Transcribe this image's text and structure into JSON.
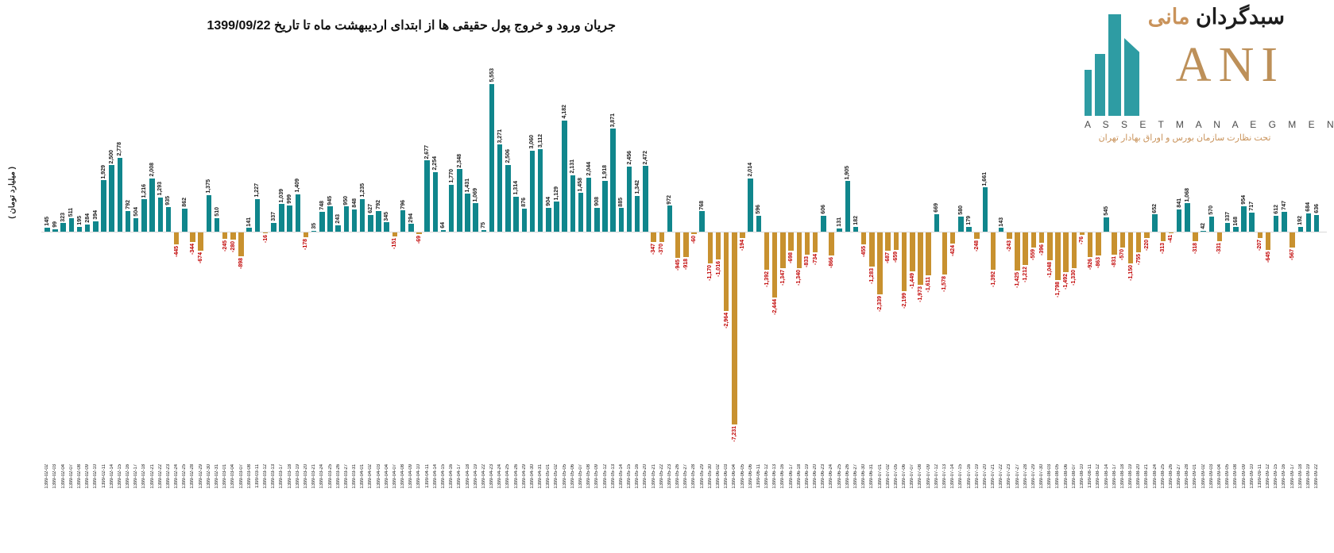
{
  "title": "جریان ورود و خروج پول حقیقی ها از ابتدای اردیبهشت ماه تا تاریخ 1399/09/22",
  "y_axis_label": "( میلیارد تومان )",
  "logo": {
    "brand_fa_dark": "سبدگردان",
    "brand_fa_gold": "مانی",
    "brand_en": "ANI",
    "subtitle_en": "A S S E T M A N A E G M E N T",
    "tagline_fa": "تحت نظارت سازمان بورس و اوراق بهادار تهران",
    "teal": "#2e9ca3",
    "gold": "#bd9059"
  },
  "chart_data": {
    "type": "bar",
    "title": "جریان ورود و خروج پول حقیقی ها از ابتدای اردیبهشت ماه تا تاریخ 1399/09/22",
    "xlabel": "",
    "ylabel": "( میلیارد تومان )",
    "unit": "میلیارد تومان",
    "legend": false,
    "grid": false,
    "ylim": [
      -7500,
      5800
    ],
    "positive_color": "#10868c",
    "negative_color": "#c8912f",
    "positive_label_color": "#1a1a1a",
    "negative_label_color": "#c00000",
    "categories": [
      "1399-02-02",
      "1399-02-03",
      "1399-02-04",
      "1399-02-07",
      "1399-02-08",
      "1399-02-09",
      "1399-02-10",
      "1399-02-11",
      "1399-02-14",
      "1399-02-15",
      "1399-02-16",
      "1399-02-17",
      "1399-02-18",
      "1399-02-21",
      "1399-02-22",
      "1399-02-23",
      "1399-02-24",
      "1399-02-25",
      "1399-02-28",
      "1399-02-29",
      "1399-02-30",
      "1399-02-31",
      "1399-03-01",
      "1399-03-04",
      "1399-03-07",
      "1399-03-08",
      "1399-03-11",
      "1399-03-12",
      "1399-03-13",
      "1399-03-17",
      "1399-03-18",
      "1399-03-19",
      "1399-03-20",
      "1399-03-21",
      "1399-03-24",
      "1399-03-25",
      "1399-03-26",
      "1399-03-27",
      "1399-03-31",
      "1399-04-01",
      "1399-04-02",
      "1399-04-03",
      "1399-04-04",
      "1399-04-07",
      "1399-04-08",
      "1399-04-09",
      "1399-04-10",
      "1399-04-11",
      "1399-04-14",
      "1399-04-15",
      "1399-04-16",
      "1399-04-17",
      "1399-04-18",
      "1399-04-19",
      "1399-04-22",
      "1399-04-23",
      "1399-04-24",
      "1399-04-25",
      "1399-04-26",
      "1399-04-29",
      "1399-04-30",
      "1399-04-31",
      "1399-05-01",
      "1399-05-02",
      "1399-05-05",
      "1399-05-06",
      "1399-05-07",
      "1399-05-08",
      "1399-05-09",
      "1399-05-12",
      "1399-05-13",
      "1399-05-14",
      "1399-05-15",
      "1399-05-16",
      "1399-05-20",
      "1399-05-21",
      "1399-05-22",
      "1399-05-23",
      "1399-05-26",
      "1399-05-27",
      "1399-05-28",
      "1399-05-29",
      "1399-05-30",
      "1399-06-02",
      "1399-06-03",
      "1399-06-04",
      "1399-06-05",
      "1399-06-06",
      "1399-06-11",
      "1399-06-12",
      "1399-06-13",
      "1399-06-16",
      "1399-06-17",
      "1399-06-18",
      "1399-06-19",
      "1399-06-20",
      "1399-06-23",
      "1399-06-24",
      "1399-06-25",
      "1399-06-26",
      "1399-06-27",
      "1399-06-30",
      "1399-06-31",
      "1399-07-01",
      "1399-07-02",
      "1399-07-05",
      "1399-07-06",
      "1399-07-07",
      "1399-07-08",
      "1399-07-09",
      "1399-07-12",
      "1399-07-13",
      "1399-07-14",
      "1399-07-15",
      "1399-07-16",
      "1399-07-19",
      "1399-07-20",
      "1399-07-21",
      "1399-07-22",
      "1399-07-23",
      "1399-07-27",
      "1399-07-28",
      "1399-07-29",
      "1399-07-30",
      "1399-08-03",
      "1399-08-05",
      "1399-08-06",
      "1399-08-07",
      "1399-08-10",
      "1399-08-11",
      "1399-08-12",
      "1399-08-14",
      "1399-08-17",
      "1399-08-18",
      "1399-08-19",
      "1399-08-20",
      "1399-08-21",
      "1399-08-24",
      "1399-08-25",
      "1399-08-26",
      "1399-08-27",
      "1399-08-28",
      "1399-09-01",
      "1399-09-02",
      "1399-09-03",
      "1399-09-04",
      "1399-09-05",
      "1399-09-08",
      "1399-09-09",
      "1399-09-10",
      "1399-09-11",
      "1399-09-12",
      "1399-09-15",
      "1399-09-16",
      "1399-09-17",
      "1399-09-18",
      "1399-09-19",
      "1399-09-22"
    ],
    "values": [
      145,
      99,
      323,
      511,
      195,
      284,
      394,
      1929,
      2500,
      2778,
      792,
      504,
      1216,
      2008,
      1293,
      935,
      -445,
      862,
      -344,
      -674,
      1375,
      510,
      -245,
      -280,
      -898,
      141,
      1227,
      -16,
      337,
      1039,
      999,
      1409,
      -178,
      35,
      748,
      945,
      243,
      950,
      848,
      1235,
      627,
      792,
      345,
      -151,
      796,
      294,
      -69,
      2677,
      2254,
      64,
      1770,
      2348,
      1431,
      1069,
      75,
      5553,
      3271,
      2506,
      1314,
      876,
      3060,
      3112,
      904,
      1129,
      4182,
      2131,
      1458,
      2044,
      908,
      1918,
      3871,
      885,
      2456,
      1342,
      2472,
      -347,
      -370,
      972,
      -945,
      -918,
      -60,
      768,
      -1170,
      -1016,
      -2964,
      -7231,
      -194,
      2014,
      596,
      -1392,
      -2444,
      -1347,
      -698,
      -1340,
      -833,
      -734,
      606,
      -866,
      131,
      1905,
      182,
      -455,
      -1283,
      -2339,
      -687,
      -659,
      -2199,
      -1449,
      -1973,
      -1611,
      669,
      -1578,
      -424,
      580,
      179,
      -248,
      1661,
      -1392,
      143,
      -243,
      -1425,
      -1212,
      -559,
      -396,
      -1048,
      -1798,
      -1492,
      -1330,
      -76,
      -926,
      -863,
      545,
      -831,
      -570,
      -1150,
      -755,
      -220,
      652,
      -313,
      -41,
      841,
      1068,
      -318,
      42,
      570,
      -331,
      337,
      168,
      954,
      717,
      -207,
      -645,
      612,
      747,
      -567,
      192,
      684,
      636
    ]
  }
}
